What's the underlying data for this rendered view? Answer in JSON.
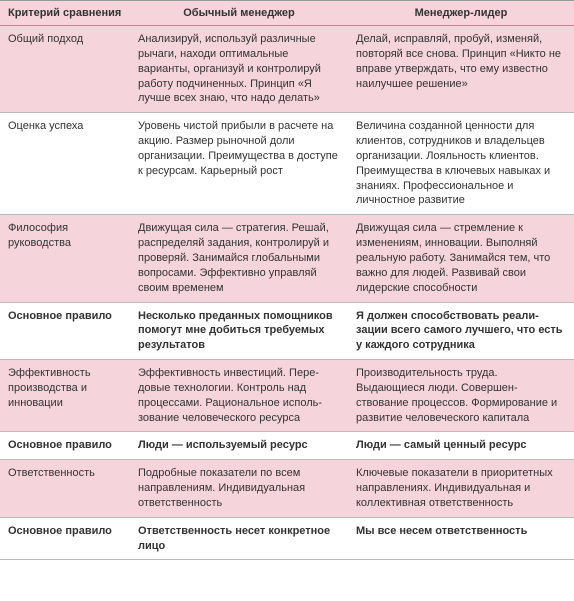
{
  "table": {
    "colors": {
      "pink": "#f5d4db",
      "white": "#ffffff",
      "border": "#999999",
      "text": "#333333"
    },
    "headers": {
      "col1": "Критерий сравнения",
      "col2": "Обычный менеджер",
      "col3": "Менеджер-лидер"
    },
    "rows": [
      {
        "bg": "pink",
        "bold": false,
        "c1": "Общий подход",
        "c2": "Анализируй, используй различ­ные рычаги, находи оптимальные варианты, организуй и контролируй работу подчиненных. Принцип «Я лучше всех знаю, что надо делать»",
        "c3": "Делай, исправляй, пробуй, из­меняй, повторяй все снова. Принцип «Никто не вправе утверждать, что ему известно наи­лучшее решение»"
      },
      {
        "bg": "white",
        "bold": false,
        "c1": "Оценка успеха",
        "c2": "Уровень чистой прибыли в расчете на акцию. Размер рыночной доли организации. Преимущества в до­ступе к ресурсам. Карьерный рост",
        "c3": "Величина созданной ценности для клиентов, сотрудников и владельцев организации. Лояль­ность клиентов. Преимущества в ключевых навыках и знаниях. Профессиональное и личностное развитие"
      },
      {
        "bg": "pink",
        "bold": false,
        "c1": "Философия руководства",
        "c2": "Движущая сила — стратегия. Решай, распределяй задания, кон­тролируй и проверяй. Занимайся глобальными вопросами. Эффек­тивно управляй своим временем",
        "c3": "Движущая сила — стремле­ние к изменениям, инновации. Выполняй реальную работу. Занимайся тем, что важно для людей. Развивай свои лидерские способности"
      },
      {
        "bg": "white",
        "bold": true,
        "c1": "Основное правило",
        "c2": "Несколько преданных помощников помогут мне добиться требуемых результатов",
        "c3": "Я должен способствовать реали­зации всего самого лучшего, что есть у каждого сотрудника"
      },
      {
        "bg": "pink",
        "bold": false,
        "c1": "Эффективность произ­водства и инновации",
        "c2": "Эффективность инвестиций. Пере­довые технологии. Контроль над процессами. Рациональное исполь­зование человеческого ресурса",
        "c3": "Производительность труда. Выдающиеся люди. Совершен­ствование процессов. Формиро­вание и развитие человеческого капитала"
      },
      {
        "bg": "white",
        "bold": true,
        "c1": "Основное правило",
        "c2": "Люди — используемый ресурс",
        "c3": "Люди — самый ценный ресурс"
      },
      {
        "bg": "pink",
        "bold": false,
        "c1": "Ответственность",
        "c2": "Подробные показатели по всем направлениям. Индивидуальная ответственность",
        "c3": "Ключевые показатели в приори­тетных направлениях. Индивиду­альная и коллективная ответ­ственность"
      },
      {
        "bg": "white",
        "bold": true,
        "c1": "Основное правило",
        "c2": "Ответственность несет конкретное лицо",
        "c3": "Мы все несем ответственность"
      }
    ]
  }
}
